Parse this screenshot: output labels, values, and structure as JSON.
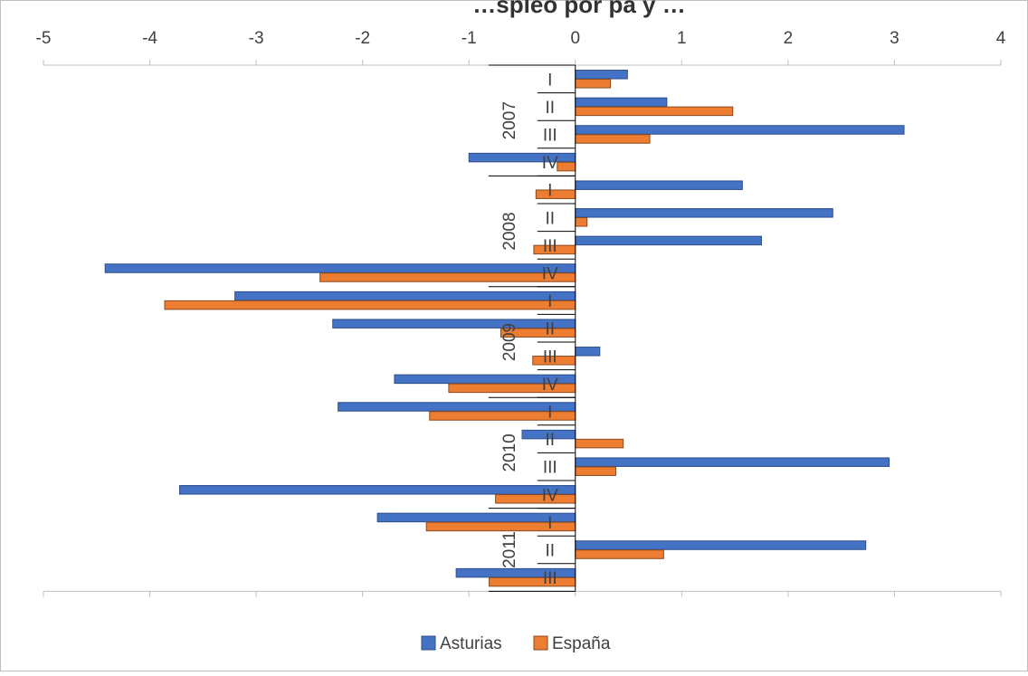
{
  "chart_data": {
    "type": "bar",
    "orientation": "horizontal",
    "title": "…spleo por pa y …",
    "xlim": [
      -5,
      4
    ],
    "x_ticks": [
      "-5",
      "-4",
      "-3",
      "-2",
      "-1",
      "0",
      "1",
      "2",
      "3",
      "4"
    ],
    "grid": false,
    "legend_position": "bottom",
    "groups": [
      {
        "year": "2007",
        "quarters": [
          "I",
          "II",
          "III",
          "IV"
        ]
      },
      {
        "year": "2008",
        "quarters": [
          "I",
          "II",
          "III",
          "IV"
        ]
      },
      {
        "year": "2009",
        "quarters": [
          "I",
          "II",
          "III",
          "IV"
        ]
      },
      {
        "year": "2010",
        "quarters": [
          "I",
          "II",
          "III",
          "IV"
        ]
      },
      {
        "year": "2011",
        "quarters": [
          "I",
          "II",
          "III"
        ]
      }
    ],
    "series": [
      {
        "name": "Asturias",
        "color": "#4472C4",
        "values": [
          0.49,
          0.86,
          3.09,
          -1.0,
          1.57,
          2.42,
          1.75,
          -4.42,
          -3.2,
          -2.28,
          0.23,
          -1.7,
          -2.23,
          -0.5,
          2.95,
          -3.72,
          -1.86,
          2.73,
          -1.12
        ]
      },
      {
        "name": "España",
        "color": "#ED7D31",
        "values": [
          0.33,
          1.48,
          0.7,
          -0.17,
          -0.37,
          0.11,
          -0.39,
          -2.4,
          -3.86,
          -0.7,
          -0.4,
          -1.19,
          -1.37,
          0.45,
          0.38,
          -0.75,
          -1.4,
          0.83,
          -0.81
        ]
      }
    ]
  }
}
